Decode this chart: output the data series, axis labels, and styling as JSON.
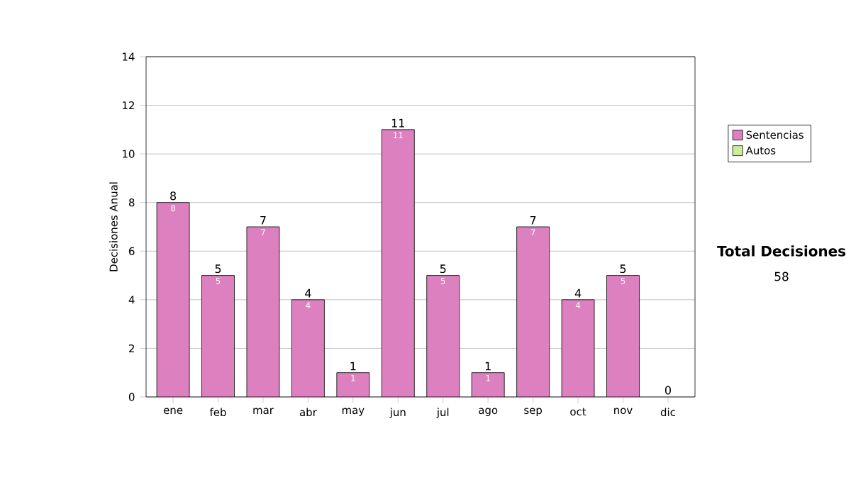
{
  "chart_data": {
    "type": "bar",
    "stacked": true,
    "ylabel": "Decisiones Anual",
    "categories": [
      "ene",
      "feb",
      "mar",
      "abr",
      "may",
      "jun",
      "jul",
      "ago",
      "sep",
      "oct",
      "nov",
      "dic"
    ],
    "series": [
      {
        "name": "Sentencias",
        "color": "#dd80bf",
        "values": [
          8,
          5,
          7,
          4,
          1,
          11,
          5,
          1,
          7,
          4,
          5,
          0
        ],
        "value_labels": [
          "8",
          "5",
          "7",
          "4",
          "1",
          "11",
          "5",
          "1",
          "7",
          "4",
          "5",
          null
        ]
      },
      {
        "name": "Autos",
        "color": "#ccee99",
        "values": [
          0,
          0,
          0,
          0,
          0,
          0,
          0,
          0,
          0,
          0,
          0,
          0
        ]
      }
    ],
    "totals": [
      "8",
      "5",
      "7",
      "4",
      "1",
      "11",
      "5",
      "1",
      "7",
      "4",
      "5",
      "0"
    ],
    "ylim": [
      0,
      14
    ],
    "yticks": [
      0,
      2,
      4,
      6,
      8,
      10,
      12,
      14
    ],
    "grid": "y",
    "legend": "right",
    "annotations": [
      "Total Decisiones",
      "58"
    ]
  }
}
